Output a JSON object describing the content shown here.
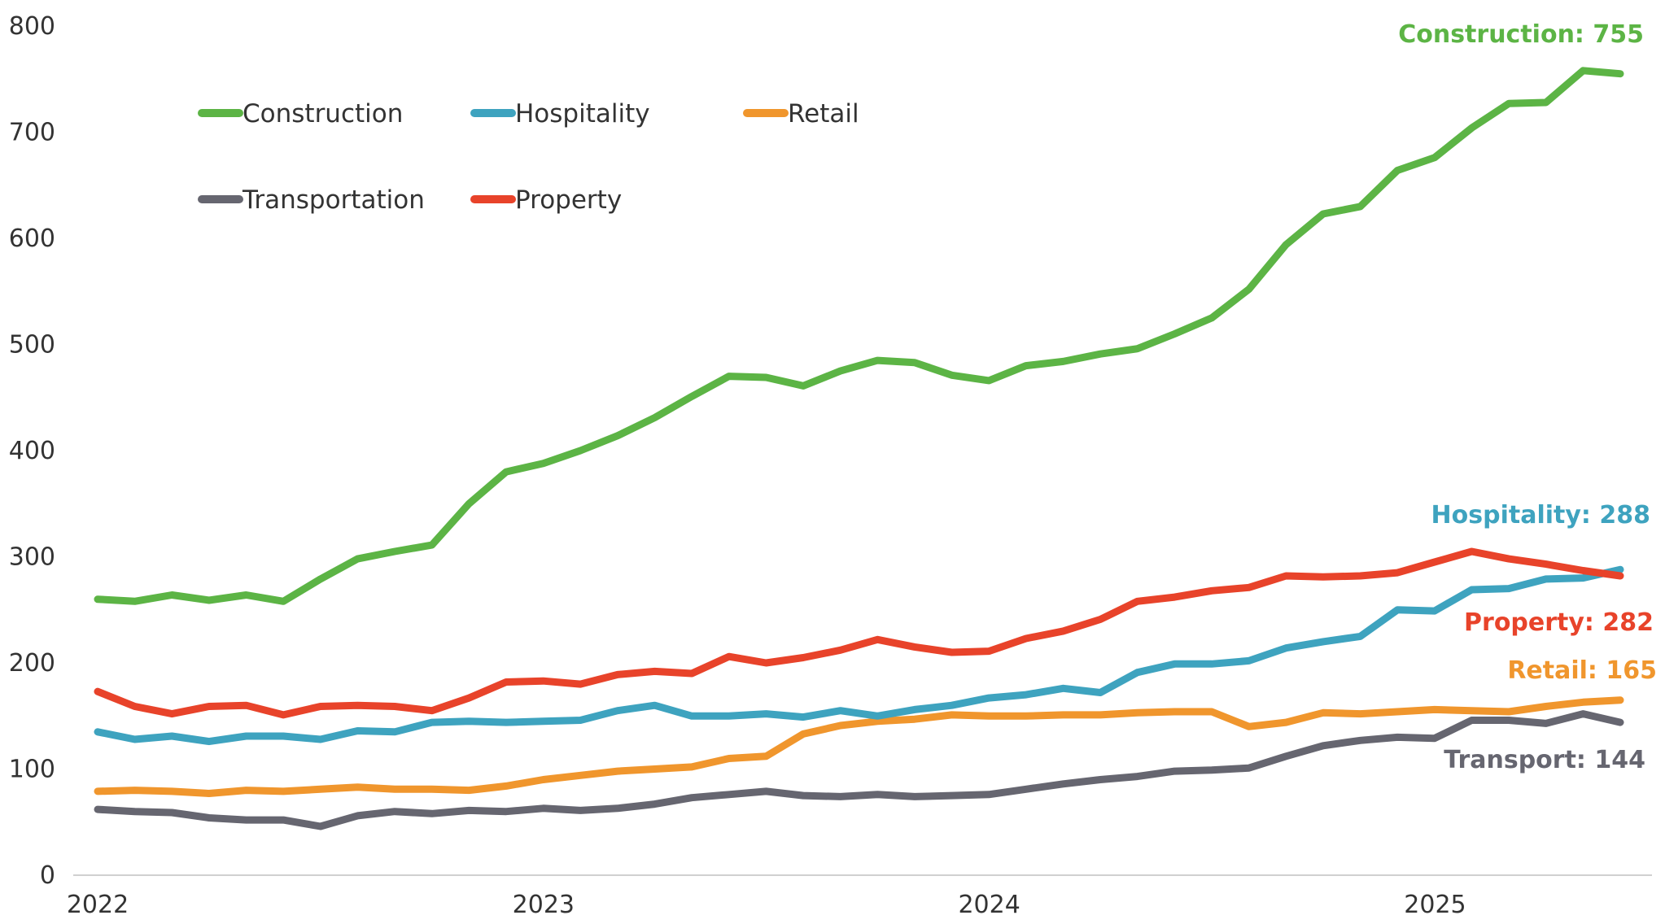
{
  "chart_data": {
    "type": "line",
    "title": "",
    "xlabel": "",
    "ylabel": "",
    "xlim": [
      2022.0,
      2025.45
    ],
    "ylim": [
      0,
      800
    ],
    "x_ticks": [
      {
        "value": 2022,
        "label": "2022"
      },
      {
        "value": 2023,
        "label": "2023"
      },
      {
        "value": 2024,
        "label": "2024"
      },
      {
        "value": 2025,
        "label": "2025"
      }
    ],
    "y_ticks": [
      {
        "value": 0,
        "label": "0"
      },
      {
        "value": 100,
        "label": "100"
      },
      {
        "value": 200,
        "label": "200"
      },
      {
        "value": 300,
        "label": "300"
      },
      {
        "value": 400,
        "label": "400"
      },
      {
        "value": 500,
        "label": "500"
      },
      {
        "value": 600,
        "label": "600"
      },
      {
        "value": 700,
        "label": "700"
      },
      {
        "value": 800,
        "label": "800"
      }
    ],
    "grid": false,
    "legend_position": "top-left",
    "x_start": 2022.0,
    "x_step": 0.0833,
    "series": [
      {
        "name": "Construction",
        "color": "#5cb445",
        "end_label": "Construction: 755",
        "values": [
          260,
          258,
          264,
          259,
          264,
          258,
          279,
          298,
          305,
          311,
          350,
          380,
          388,
          400,
          414,
          431,
          451,
          470,
          469,
          461,
          475,
          485,
          483,
          471,
          466,
          480,
          484,
          491,
          496,
          510,
          525,
          552,
          594,
          623,
          630,
          664,
          676,
          704,
          727,
          728,
          758,
          755
        ]
      },
      {
        "name": "Hospitality",
        "color": "#3ea3bf",
        "end_label": "Hospitality: 288",
        "values": [
          135,
          128,
          131,
          126,
          131,
          131,
          128,
          136,
          135,
          144,
          145,
          144,
          145,
          146,
          155,
          160,
          150,
          150,
          152,
          149,
          155,
          150,
          156,
          160,
          167,
          170,
          176,
          172,
          191,
          199,
          199,
          202,
          214,
          220,
          225,
          250,
          249,
          269,
          270,
          279,
          280,
          288
        ]
      },
      {
        "name": "Retail",
        "color": "#f0962d",
        "end_label": "Retail: 165",
        "values": [
          79,
          80,
          79,
          77,
          80,
          79,
          81,
          83,
          81,
          81,
          80,
          84,
          90,
          94,
          98,
          100,
          102,
          110,
          112,
          133,
          141,
          145,
          147,
          151,
          150,
          150,
          151,
          151,
          153,
          154,
          154,
          140,
          144,
          153,
          152,
          154,
          156,
          155,
          154,
          159,
          163,
          165
        ]
      },
      {
        "name": "Transportation",
        "color": "#666670",
        "end_label": "Transport: 144",
        "values": [
          62,
          60,
          59,
          54,
          52,
          52,
          46,
          56,
          60,
          58,
          61,
          60,
          63,
          61,
          63,
          67,
          73,
          76,
          79,
          75,
          74,
          76,
          74,
          75,
          76,
          81,
          86,
          90,
          93,
          98,
          99,
          101,
          112,
          122,
          127,
          130,
          129,
          146,
          146,
          143,
          152,
          144
        ]
      },
      {
        "name": "Property",
        "color": "#e8432a",
        "end_label": "Property: 282",
        "values": [
          173,
          159,
          152,
          159,
          160,
          151,
          159,
          160,
          159,
          155,
          167,
          182,
          183,
          180,
          189,
          192,
          190,
          206,
          200,
          205,
          212,
          222,
          215,
          210,
          211,
          223,
          230,
          241,
          258,
          262,
          268,
          271,
          282,
          281,
          282,
          285,
          295,
          305,
          298,
          293,
          287,
          282
        ]
      }
    ]
  }
}
